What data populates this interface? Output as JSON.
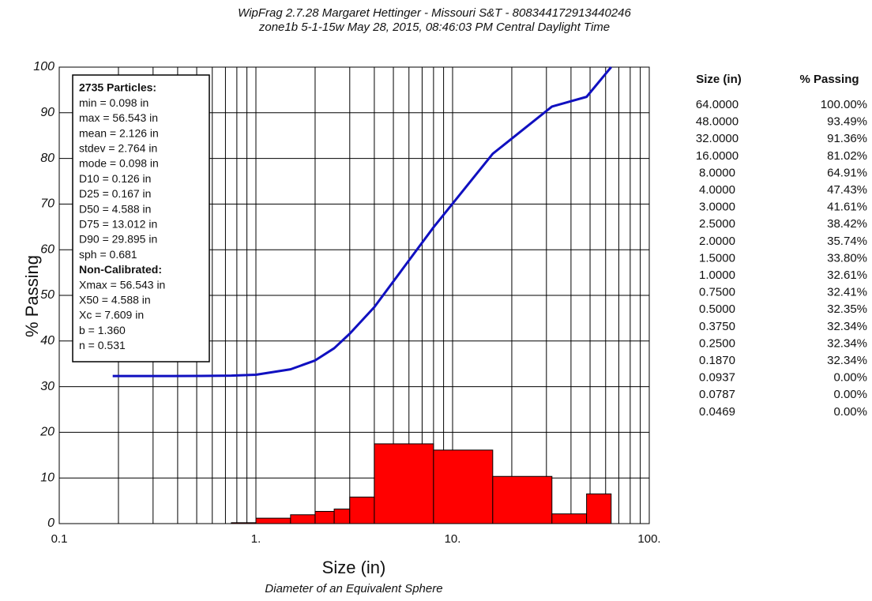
{
  "chart_data": {
    "type": "line",
    "title": "WipFrag 2.7.28   Margaret Hettinger - Missouri S&T - 808344172913440246",
    "subtitle": "zone1b 5-1-15w   May 28, 2015, 08:46:03 PM Central Daylight Time",
    "x_label": "Size (in)",
    "x_sublabel": "Diameter of an Equivalent Sphere",
    "y_label": "% Passing",
    "x_scale": "log",
    "xlim": [
      0.1,
      100
    ],
    "ylim": [
      0,
      100
    ],
    "xticks": [
      {
        "value": 0.1,
        "label": "0.1"
      },
      {
        "value": 1,
        "label": "1."
      },
      {
        "value": 10,
        "label": "10."
      },
      {
        "value": 100,
        "label": "100."
      }
    ],
    "x_minor_ticks": [
      0.2,
      0.3,
      0.4,
      0.5,
      0.6,
      0.7,
      0.8,
      0.9,
      2,
      3,
      4,
      5,
      6,
      7,
      8,
      9,
      20,
      30,
      40,
      50,
      60,
      70,
      80,
      90
    ],
    "yticks": [
      0,
      10,
      20,
      30,
      40,
      50,
      60,
      70,
      80,
      90,
      100
    ],
    "grid": true,
    "x": [
      0.187,
      0.25,
      0.375,
      0.5,
      0.75,
      1,
      1.5,
      2,
      2.5,
      3,
      4,
      8,
      16,
      32,
      48,
      64
    ],
    "series": [
      {
        "color": "#1010c0",
        "values": [
          32.34,
          32.34,
          32.34,
          32.35,
          32.41,
          32.61,
          33.8,
          35.74,
          38.42,
          41.61,
          47.43,
          64.91,
          81.02,
          91.36,
          93.49,
          100
        ]
      }
    ],
    "histogram": {
      "color": "#ff0000",
      "bins": [
        0.75,
        1,
        1.5,
        2,
        2.5,
        3,
        4,
        8,
        16,
        32,
        48,
        64
      ],
      "counts": [
        0.2,
        1.19,
        1.94,
        2.68,
        3.19,
        5.82,
        17.48,
        16.11,
        10.34,
        2.13,
        6.51
      ]
    },
    "stats_box": [
      {
        "text": "2735 Particles:",
        "bold": true
      },
      {
        "text": "min = 0.098 in",
        "bold": false
      },
      {
        "text": "max = 56.543 in",
        "bold": false
      },
      {
        "text": "mean = 2.126 in",
        "bold": false
      },
      {
        "text": "stdev = 2.764 in",
        "bold": false
      },
      {
        "text": "mode = 0.098 in",
        "bold": false
      },
      {
        "text": "D10 = 0.126 in",
        "bold": false
      },
      {
        "text": "D25 = 0.167 in",
        "bold": false
      },
      {
        "text": "D50 = 4.588 in",
        "bold": false
      },
      {
        "text": "D75 = 13.012 in",
        "bold": false
      },
      {
        "text": "D90 = 29.895 in",
        "bold": false
      },
      {
        "text": "sph = 0.681",
        "bold": false
      },
      {
        "text": "Non-Calibrated:",
        "bold": true
      },
      {
        "text": "Xmax = 56.543 in",
        "bold": false
      },
      {
        "text": "X50 = 4.588 in",
        "bold": false
      },
      {
        "text": "Xc = 7.609 in",
        "bold": false
      },
      {
        "text": "b = 1.360",
        "bold": false
      },
      {
        "text": "n = 0.531",
        "bold": false
      }
    ],
    "table": {
      "headers": [
        "Size (in)",
        "% Passing"
      ],
      "rows": [
        [
          "64.0000",
          "100.00%"
        ],
        [
          "48.0000",
          "93.49%"
        ],
        [
          "32.0000",
          "91.36%"
        ],
        [
          "16.0000",
          "81.02%"
        ],
        [
          "8.0000",
          "64.91%"
        ],
        [
          "4.0000",
          "47.43%"
        ],
        [
          "3.0000",
          "41.61%"
        ],
        [
          "2.5000",
          "38.42%"
        ],
        [
          "2.0000",
          "35.74%"
        ],
        [
          "1.5000",
          "33.80%"
        ],
        [
          "1.0000",
          "32.61%"
        ],
        [
          "0.7500",
          "32.41%"
        ],
        [
          "0.5000",
          "32.35%"
        ],
        [
          "0.3750",
          "32.34%"
        ],
        [
          "0.2500",
          "32.34%"
        ],
        [
          "0.1870",
          "32.34%"
        ],
        [
          "0.0937",
          "0.00%"
        ],
        [
          "0.0787",
          "0.00%"
        ],
        [
          "0.0469",
          "0.00%"
        ]
      ]
    }
  }
}
